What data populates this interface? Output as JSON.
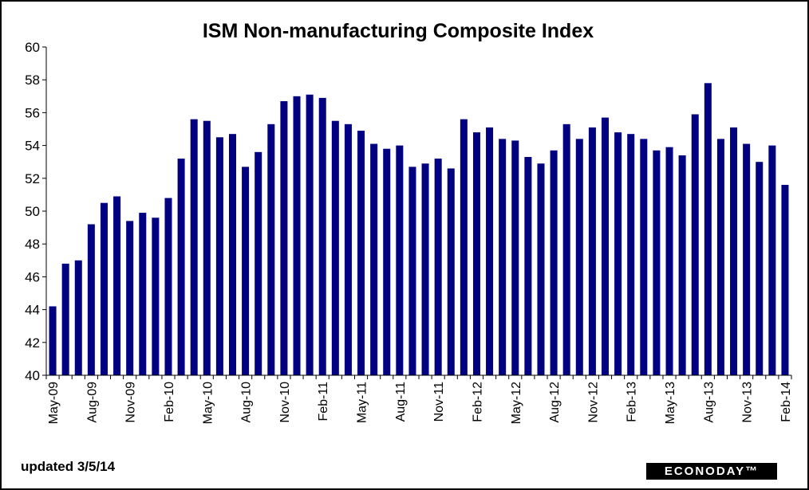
{
  "chart_data": {
    "type": "bar",
    "title": "ISM Non-manufacturing Composite Index",
    "xlabel": "",
    "ylabel": "",
    "ylim": [
      40,
      60
    ],
    "yticks": [
      40,
      42,
      44,
      46,
      48,
      50,
      52,
      54,
      56,
      58,
      60
    ],
    "grid": false,
    "legend": "none",
    "bar_color": "#000080",
    "categories": [
      "May-09",
      "Jun-09",
      "Jul-09",
      "Aug-09",
      "Sep-09",
      "Oct-09",
      "Nov-09",
      "Dec-09",
      "Jan-10",
      "Feb-10",
      "Mar-10",
      "Apr-10",
      "May-10",
      "Jun-10",
      "Jul-10",
      "Aug-10",
      "Sep-10",
      "Oct-10",
      "Nov-10",
      "Dec-10",
      "Jan-11",
      "Feb-11",
      "Mar-11",
      "Apr-11",
      "May-11",
      "Jun-11",
      "Jul-11",
      "Aug-11",
      "Sep-11",
      "Oct-11",
      "Nov-11",
      "Dec-11",
      "Jan-12",
      "Feb-12",
      "Mar-12",
      "Apr-12",
      "May-12",
      "Jun-12",
      "Jul-12",
      "Aug-12",
      "Sep-12",
      "Oct-12",
      "Nov-12",
      "Dec-12",
      "Jan-13",
      "Feb-13",
      "Mar-13",
      "Apr-13",
      "May-13",
      "Jun-13",
      "Jul-13",
      "Aug-13",
      "Sep-13",
      "Oct-13",
      "Nov-13",
      "Dec-13",
      "Jan-14",
      "Feb-14"
    ],
    "tick_labels": [
      "May-09",
      "Aug-09",
      "Nov-09",
      "Feb-10",
      "May-10",
      "Aug-10",
      "Nov-10",
      "Feb-11",
      "May-11",
      "Aug-11",
      "Nov-11",
      "Feb-12",
      "May-12",
      "Aug-12",
      "Nov-12",
      "Feb-13",
      "May-13",
      "Aug-13",
      "Nov-13",
      "Feb-14"
    ],
    "values": [
      44.2,
      46.8,
      47.0,
      49.2,
      50.5,
      50.9,
      49.4,
      49.9,
      49.6,
      50.8,
      53.2,
      55.6,
      55.5,
      54.5,
      54.7,
      52.7,
      53.6,
      55.3,
      56.7,
      57.0,
      57.1,
      56.9,
      55.5,
      55.3,
      54.9,
      54.1,
      53.8,
      54.0,
      52.7,
      52.9,
      53.2,
      52.6,
      55.6,
      54.8,
      55.1,
      54.4,
      54.3,
      53.3,
      52.9,
      53.7,
      55.3,
      54.4,
      55.1,
      55.7,
      54.8,
      54.7,
      54.4,
      53.7,
      53.9,
      53.4,
      55.9,
      57.8,
      54.4,
      55.1,
      54.1,
      53.0,
      54.0,
      51.6
    ]
  },
  "footer": {
    "updated": "updated 3/5/14",
    "logo": "ECONODAY™"
  }
}
